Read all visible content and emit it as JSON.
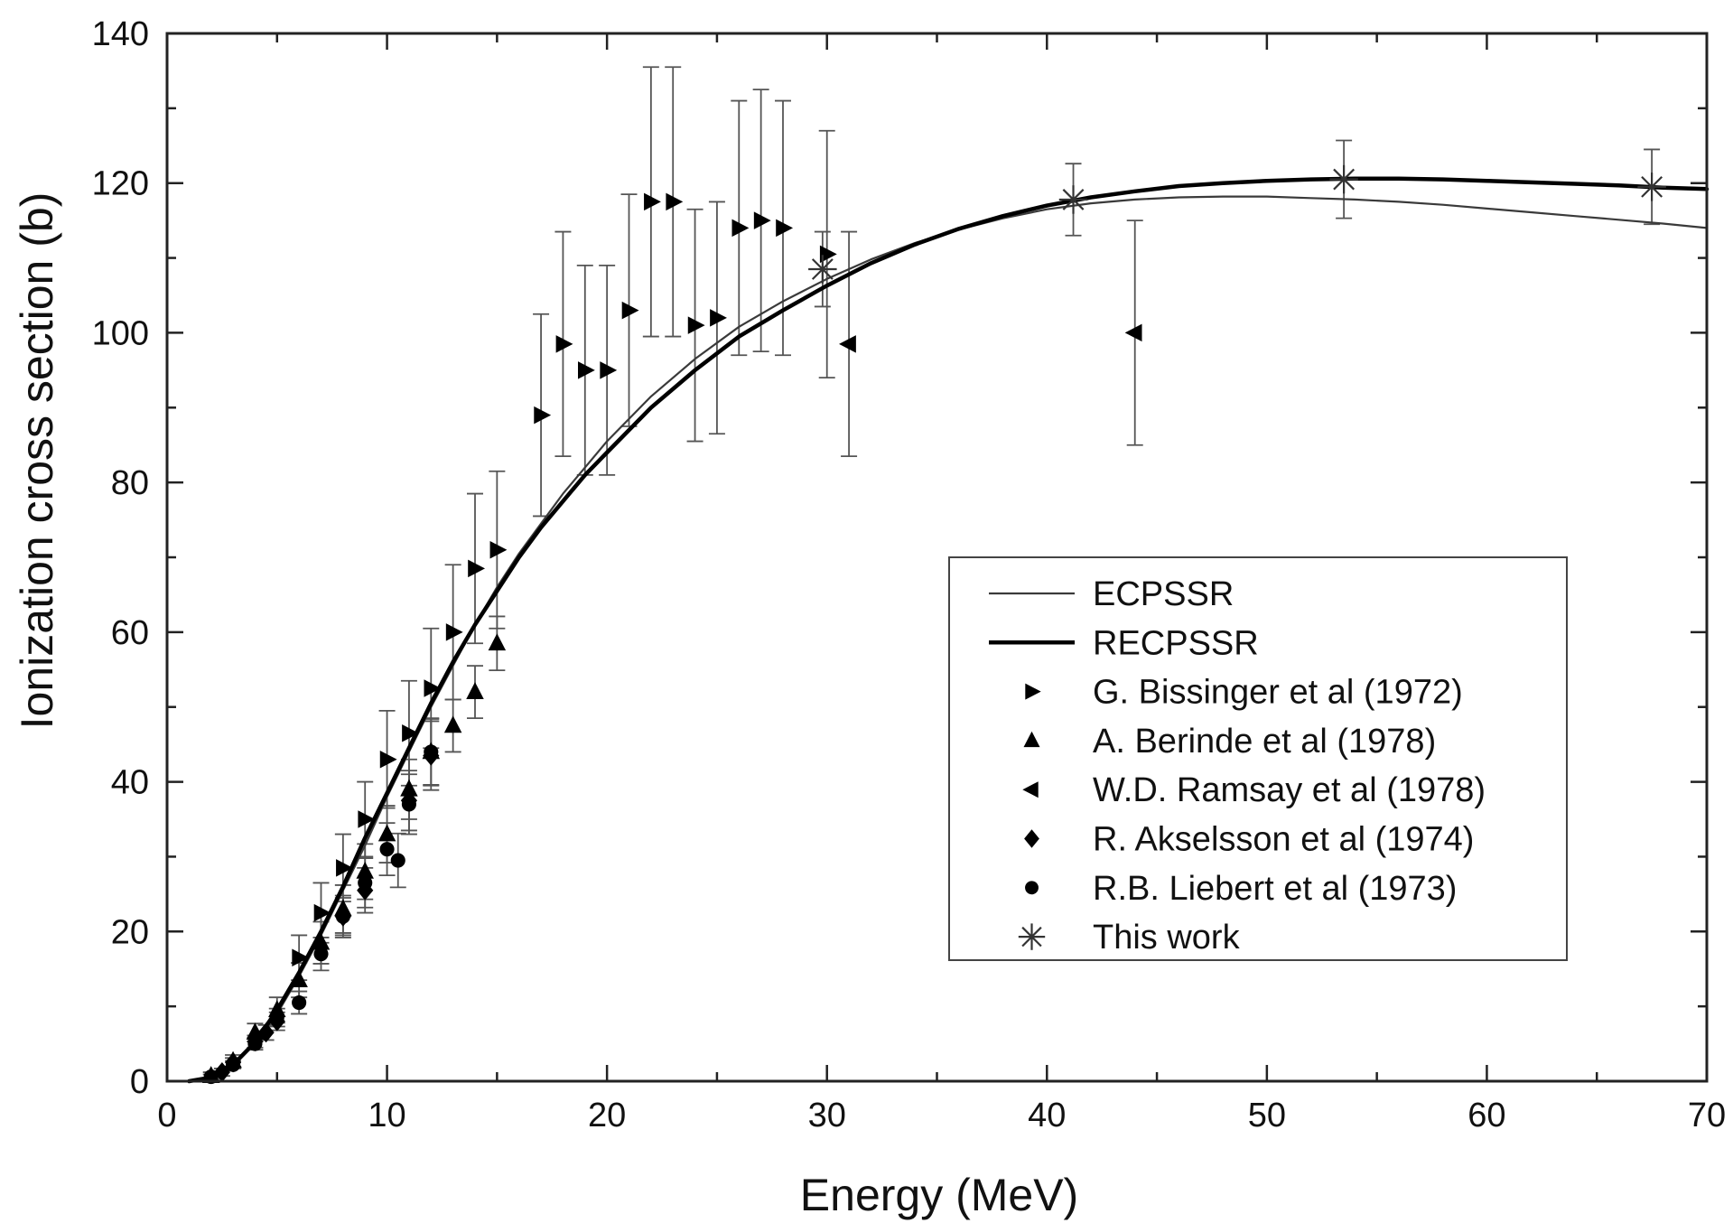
{
  "chart_data": {
    "type": "scatter",
    "title": "",
    "xlabel": "Energy (MeV)",
    "ylabel": "Ionization cross section (b)",
    "xlim": [
      0,
      70
    ],
    "ylim": [
      0,
      140
    ],
    "x_ticks": [
      "0",
      "10",
      "20",
      "30",
      "40",
      "50",
      "60",
      "70"
    ],
    "y_ticks": [
      "0",
      "20",
      "40",
      "60",
      "80",
      "100",
      "120",
      "140"
    ],
    "grid": false,
    "legend_position": "center-right",
    "series": [
      {
        "name": "ECPSSR",
        "kind": "line",
        "stroke": "#3a3a3a",
        "weight": "thin",
        "x": [
          1,
          2,
          3,
          4,
          5,
          6,
          7,
          8,
          9,
          10,
          11,
          12,
          13,
          14,
          15,
          16,
          17,
          18,
          19,
          20,
          22,
          24,
          26,
          28,
          30,
          32,
          34,
          36,
          38,
          40,
          42,
          44,
          46,
          48,
          50,
          52,
          54,
          56,
          58,
          60,
          62,
          64,
          66,
          68,
          70
        ],
        "y": [
          0,
          0.5,
          2.0,
          5.0,
          9.0,
          14.0,
          19.5,
          25.5,
          31.5,
          38.0,
          44.0,
          50.0,
          55.5,
          61.0,
          66.0,
          70.5,
          74.5,
          78.5,
          82.0,
          85.5,
          91.5,
          96.5,
          100.8,
          104.2,
          107.2,
          109.8,
          112.0,
          113.8,
          115.3,
          116.5,
          117.3,
          117.8,
          118.1,
          118.2,
          118.2,
          118.0,
          117.8,
          117.5,
          117.1,
          116.6,
          116.1,
          115.6,
          115.1,
          114.6,
          114.0
        ]
      },
      {
        "name": "RECPSSR",
        "kind": "line",
        "stroke": "#000000",
        "weight": "thick",
        "x": [
          1,
          2,
          3,
          4,
          5,
          6,
          7,
          8,
          9,
          10,
          11,
          12,
          13,
          14,
          15,
          16,
          17,
          18,
          19,
          20,
          22,
          24,
          26,
          28,
          30,
          32,
          34,
          36,
          38,
          40,
          42,
          44,
          46,
          48,
          50,
          52,
          54,
          56,
          58,
          60,
          62,
          64,
          66,
          68,
          70
        ],
        "y": [
          0,
          0.5,
          2.2,
          5.2,
          9.5,
          14.5,
          20.0,
          26.0,
          32.5,
          38.5,
          44.5,
          50.5,
          56.0,
          61.0,
          65.5,
          70.0,
          74.0,
          77.5,
          81.0,
          84.0,
          90.0,
          95.0,
          99.5,
          103.0,
          106.3,
          109.3,
          111.8,
          113.9,
          115.6,
          117.0,
          118.1,
          118.9,
          119.6,
          120.0,
          120.3,
          120.5,
          120.6,
          120.6,
          120.5,
          120.3,
          120.1,
          119.9,
          119.7,
          119.4,
          119.2
        ]
      },
      {
        "name": "G. Bissinger et al (1972)",
        "kind": "points",
        "marker": "triangle-right",
        "x": [
          6,
          7,
          8,
          9,
          10,
          11,
          12,
          13,
          14,
          15,
          17,
          18,
          19,
          20,
          21,
          22,
          23,
          24,
          25,
          26,
          27,
          28,
          30
        ],
        "y": [
          16.5,
          22.5,
          28.5,
          35,
          43,
          46.5,
          52.5,
          60,
          68.5,
          71,
          89,
          98.5,
          95,
          95,
          103,
          117.5,
          117.5,
          101,
          102,
          114,
          115,
          114,
          110.5
        ],
        "err": [
          3,
          4,
          4.5,
          5,
          6.5,
          7,
          8,
          9,
          10,
          10.5,
          13.5,
          15,
          14,
          14,
          15.5,
          18,
          18,
          15.5,
          15.5,
          17,
          17.5,
          17,
          16.5
        ]
      },
      {
        "name": "A. Berinde et al (1978)",
        "kind": "points",
        "marker": "triangle-up",
        "x": [
          2,
          3,
          4,
          5,
          6,
          7,
          8,
          9,
          10,
          11,
          12,
          13,
          14,
          15
        ],
        "y": [
          0.7,
          2.7,
          6.5,
          9.5,
          13.5,
          18.5,
          23,
          28,
          33,
          39,
          44,
          47.5,
          52,
          58.5
        ],
        "err": [
          0.5,
          0.8,
          1.2,
          1.7,
          2.3,
          2.8,
          3.2,
          3.7,
          3.8,
          4,
          4.4,
          3.5,
          3.5,
          3.6
        ]
      },
      {
        "name": "W.D. Ramsay et al (1978)",
        "kind": "points",
        "marker": "triangle-left",
        "x": [
          31,
          44
        ],
        "y": [
          98.5,
          100
        ],
        "err": [
          15,
          15
        ]
      },
      {
        "name": "R. Akselsson et al (1974)",
        "kind": "points",
        "marker": "diamond",
        "x": [
          2.5,
          3,
          4,
          4.5,
          5,
          8,
          9,
          11,
          12
        ],
        "y": [
          1.2,
          2.5,
          5.3,
          6.5,
          8,
          22,
          25.5,
          37.5,
          43.5
        ],
        "err": [
          0.5,
          0.6,
          0.8,
          1,
          1.2,
          2.5,
          3,
          4,
          4.6
        ]
      },
      {
        "name": "R.B. Liebert et al (1973)",
        "kind": "points",
        "marker": "circle",
        "x": [
          2,
          3,
          4,
          5,
          6,
          7,
          8,
          9,
          10,
          10.5,
          11,
          12
        ],
        "y": [
          0.6,
          2.2,
          5,
          8.5,
          10.5,
          17,
          22,
          26.5,
          31,
          29.5,
          37,
          44
        ],
        "err": [
          0.3,
          0.5,
          0.8,
          1.2,
          1.5,
          2.2,
          2.8,
          3.3,
          3.5,
          3.6,
          4,
          4.5
        ]
      },
      {
        "name": "This work",
        "kind": "points",
        "marker": "asterisk",
        "x": [
          29.8,
          41.2,
          53.5,
          67.5
        ],
        "y": [
          108.5,
          117.8,
          120.5,
          119.5
        ],
        "err": [
          5,
          4.8,
          5.2,
          5
        ]
      }
    ]
  }
}
